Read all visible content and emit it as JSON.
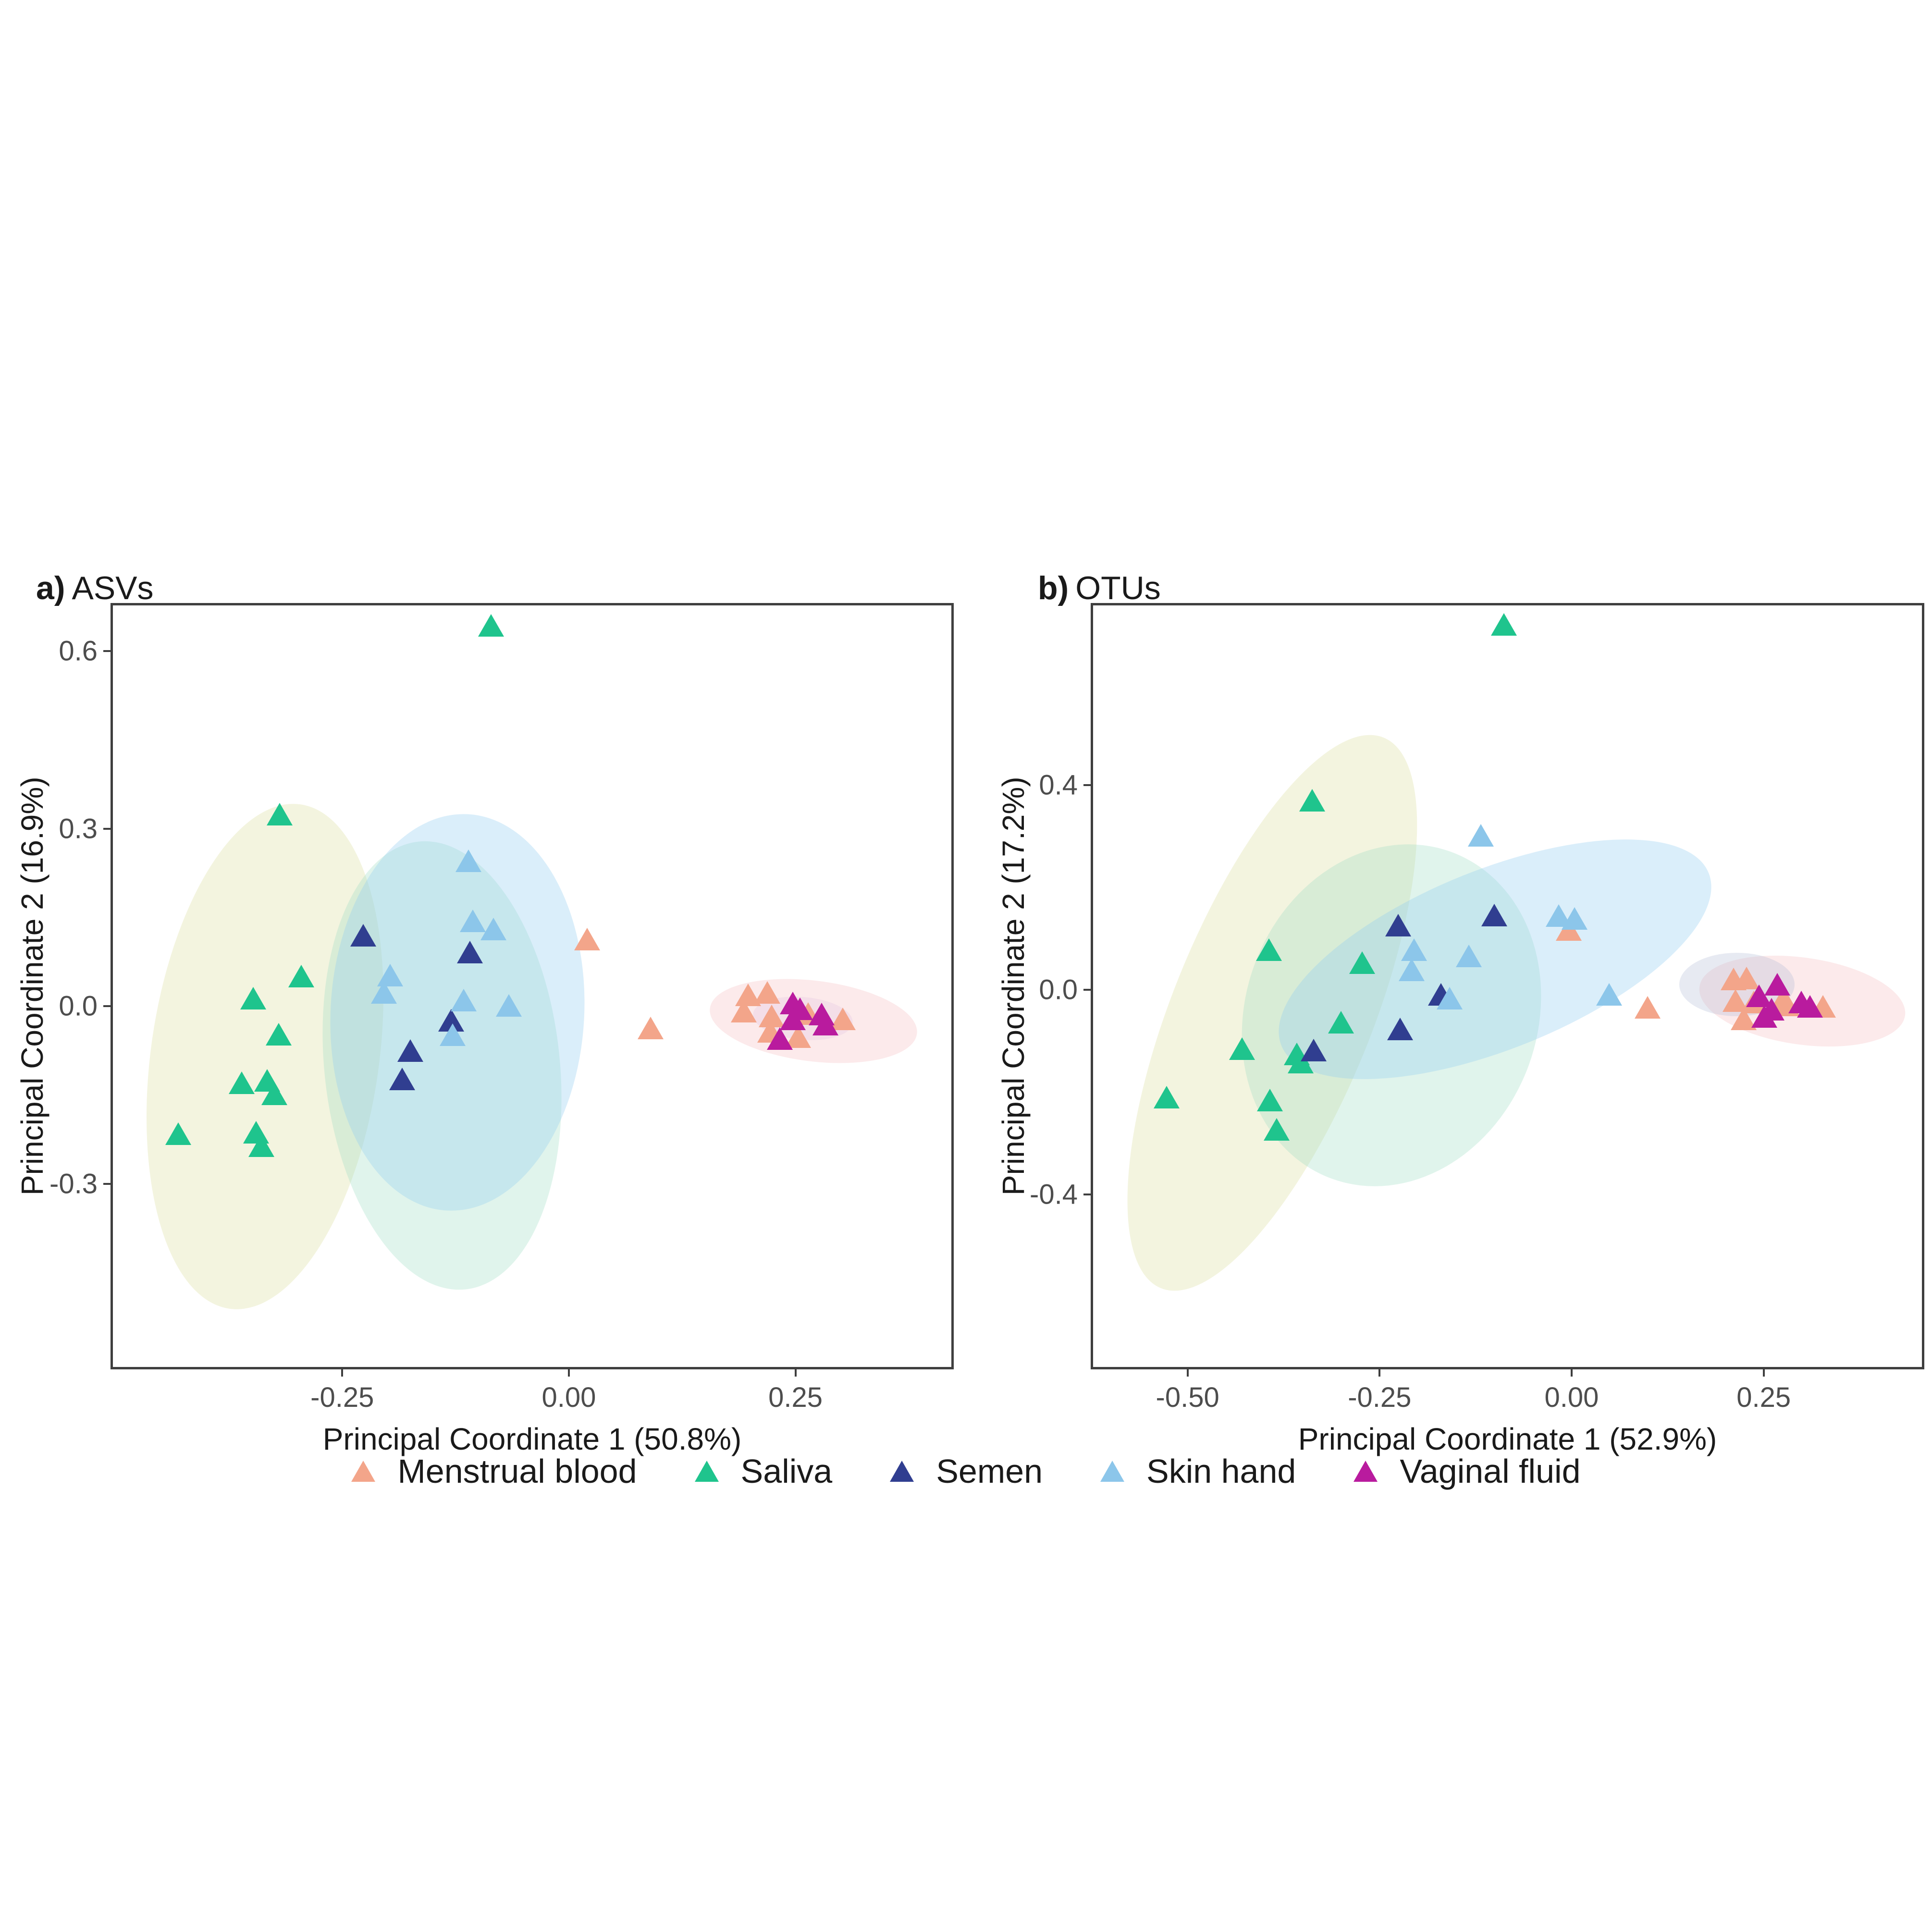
{
  "figure": {
    "background": "#ffffff",
    "border_color": "#3f3f3f",
    "tick_label_color": "#4d4d4d"
  },
  "colors": {
    "markers": {
      "menstrual_blood": "#F3A58A",
      "saliva": "#1FC48D",
      "semen": "#303E90",
      "skin_hand": "#8CC6EA",
      "vaginal_fluid": "#B91B9E"
    }
  },
  "chart_data": [
    {
      "type": "scatter",
      "panel_label": "a)",
      "title": "ASVs",
      "xlabel": "Principal Coordinate 1 (50.8%)",
      "ylabel": "Principal Coordinate 2 (16.9%)",
      "xlim": [
        -0.503,
        0.422
      ],
      "ylim": [
        -0.609,
        0.677
      ],
      "xticks": [
        -0.25,
        0.0,
        0.25
      ],
      "xtick_labels": [
        "-0.25",
        "0.00",
        "0.25"
      ],
      "yticks": [
        0.6,
        0.3,
        0.0,
        -0.3
      ],
      "ytick_labels": [
        "0.6",
        "0.3",
        "0.0",
        "-0.3"
      ],
      "grid": false,
      "legend_position": "bottom-shared",
      "ellipses": [
        {
          "series": "saliva",
          "cx": -0.335,
          "cy": -0.085,
          "rx": 0.126,
          "ry": 0.43,
          "rot": 8,
          "fill": "rgba(225,227,175,0.40)"
        },
        {
          "series": "semen",
          "cx": -0.14,
          "cy": -0.1,
          "rx": 0.13,
          "ry": 0.38,
          "rot": -6,
          "fill": "rgba(160,220,196,0.32)"
        },
        {
          "series": "skin_hand",
          "cx": -0.123,
          "cy": -0.01,
          "rx": 0.14,
          "ry": 0.335,
          "rot": 3,
          "fill": "rgba(150,206,240,0.35)"
        },
        {
          "series": "menstrual_blood",
          "cx": 0.27,
          "cy": -0.025,
          "rx": 0.115,
          "ry": 0.068,
          "rot": 7,
          "fill": "rgba(246,190,193,0.32)"
        },
        {
          "series": "vaginal_fluid",
          "cx": 0.258,
          "cy": -0.02,
          "rx": 0.055,
          "ry": 0.036,
          "rot": 5,
          "fill": "rgba(228,200,225,0.35)"
        }
      ],
      "series": [
        {
          "name": "Menstrual blood",
          "key": "menstrual_blood",
          "points": [
            [
              0.02,
              0.11
            ],
            [
              0.09,
              -0.04
            ],
            [
              0.198,
              0.016
            ],
            [
              0.219,
              0.02
            ],
            [
              0.193,
              -0.012
            ],
            [
              0.224,
              -0.02
            ],
            [
              0.264,
              -0.016
            ],
            [
              0.302,
              -0.025
            ],
            [
              0.222,
              -0.046
            ],
            [
              0.253,
              -0.055
            ]
          ]
        },
        {
          "name": "Saliva",
          "key": "saliva",
          "points": [
            [
              -0.086,
              0.64
            ],
            [
              -0.319,
              0.321
            ],
            [
              -0.295,
              0.047
            ],
            [
              -0.348,
              0.01
            ],
            [
              -0.32,
              -0.051
            ],
            [
              -0.361,
              -0.133
            ],
            [
              -0.333,
              -0.129
            ],
            [
              -0.325,
              -0.151
            ],
            [
              -0.431,
              -0.219
            ],
            [
              -0.345,
              -0.216
            ],
            [
              -0.339,
              -0.239
            ]
          ]
        },
        {
          "name": "Semen",
          "key": "semen",
          "points": [
            [
              -0.227,
              0.116
            ],
            [
              -0.109,
              0.088
            ],
            [
              -0.13,
              -0.027
            ],
            [
              -0.175,
              -0.078
            ],
            [
              -0.184,
              -0.126
            ]
          ]
        },
        {
          "name": "Skin hand",
          "key": "skin_hand",
          "points": [
            [
              -0.111,
              0.242
            ],
            [
              -0.106,
              0.141
            ],
            [
              -0.083,
              0.127
            ],
            [
              -0.197,
              0.049
            ],
            [
              -0.204,
              0.02
            ],
            [
              -0.116,
              0.007
            ],
            [
              -0.066,
              -0.002
            ],
            [
              -0.128,
              -0.052
            ]
          ]
        },
        {
          "name": "Vaginal fluid",
          "key": "vaginal_fluid",
          "points": [
            [
              0.247,
              0.002
            ],
            [
              0.255,
              -0.008
            ],
            [
              0.247,
              -0.025
            ],
            [
              0.279,
              -0.017
            ],
            [
              0.283,
              -0.034
            ],
            [
              0.233,
              -0.058
            ]
          ]
        }
      ]
    },
    {
      "type": "scatter",
      "panel_label": "b)",
      "title": "OTUs",
      "xlabel": "Principal Coordinate 1 (52.9%)",
      "ylabel": "Principal Coordinate 2 (17.2%)",
      "xlim": [
        -0.623,
        0.456
      ],
      "ylim": [
        -0.737,
        0.751
      ],
      "xticks": [
        -0.5,
        -0.25,
        0.0,
        0.25
      ],
      "xtick_labels": [
        "-0.50",
        "-0.25",
        "0.00",
        "0.25"
      ],
      "yticks": [
        0.4,
        0.0,
        -0.4
      ],
      "ytick_labels": [
        "0.4",
        "0.0",
        "-0.4"
      ],
      "grid": false,
      "legend_position": "bottom-shared",
      "ellipses": [
        {
          "series": "saliva",
          "cx": -0.39,
          "cy": -0.045,
          "rx": 0.13,
          "ry": 0.58,
          "rot": 22,
          "fill": "rgba(225,227,175,0.40)"
        },
        {
          "series": "semen",
          "cx": -0.235,
          "cy": -0.05,
          "rx": 0.19,
          "ry": 0.34,
          "rot": 20,
          "fill": "rgba(160,220,196,0.32)"
        },
        {
          "series": "skin_hand",
          "cx": -0.1,
          "cy": 0.06,
          "rx": 0.3,
          "ry": 0.175,
          "rot": -22,
          "fill": "rgba(150,206,240,0.35)"
        },
        {
          "series": "menstrual_blood",
          "cx": 0.3,
          "cy": -0.022,
          "rx": 0.135,
          "ry": 0.085,
          "rot": 8,
          "fill": "rgba(246,190,193,0.32)"
        },
        {
          "series": "vaginal_fluid",
          "cx": 0.215,
          "cy": 0.01,
          "rx": 0.075,
          "ry": 0.062,
          "rot": 0,
          "fill": "rgba(176,186,212,0.30)"
        }
      ],
      "series": [
        {
          "name": "Menstrual blood",
          "key": "menstrual_blood",
          "points": [
            [
              -0.004,
              0.114
            ],
            [
              0.099,
              -0.039
            ],
            [
              0.211,
              0.017
            ],
            [
              0.228,
              0.019
            ],
            [
              0.213,
              -0.025
            ],
            [
              0.237,
              -0.028
            ],
            [
              0.276,
              -0.021
            ],
            [
              0.28,
              -0.034
            ],
            [
              0.327,
              -0.037
            ],
            [
              0.224,
              -0.061
            ]
          ]
        },
        {
          "name": "Saliva",
          "key": "saliva",
          "points": [
            [
              -0.088,
              0.71
            ],
            [
              -0.338,
              0.366
            ],
            [
              -0.394,
              0.074
            ],
            [
              -0.273,
              0.049
            ],
            [
              -0.3,
              -0.068
            ],
            [
              -0.429,
              -0.119
            ],
            [
              -0.358,
              -0.13
            ],
            [
              -0.353,
              -0.146
            ],
            [
              -0.527,
              -0.214
            ],
            [
              -0.393,
              -0.22
            ],
            [
              -0.384,
              -0.277
            ]
          ]
        },
        {
          "name": "Semen",
          "key": "semen",
          "points": [
            [
              -0.226,
              0.122
            ],
            [
              -0.101,
              0.142
            ],
            [
              -0.17,
              -0.013
            ],
            [
              -0.223,
              -0.081
            ],
            [
              -0.336,
              -0.122
            ]
          ]
        },
        {
          "name": "Skin hand",
          "key": "skin_hand",
          "points": [
            [
              -0.118,
              0.298
            ],
            [
              -0.205,
              0.074
            ],
            [
              -0.208,
              0.035
            ],
            [
              -0.134,
              0.062
            ],
            [
              -0.159,
              -0.021
            ],
            [
              -0.017,
              0.141
            ],
            [
              0.004,
              0.135
            ],
            [
              0.049,
              -0.013
            ]
          ]
        },
        {
          "name": "Vaginal fluid",
          "key": "vaginal_fluid",
          "points": [
            [
              0.268,
              0.007
            ],
            [
              0.244,
              -0.016
            ],
            [
              0.26,
              -0.042
            ],
            [
              0.299,
              -0.028
            ],
            [
              0.31,
              -0.037
            ],
            [
              0.251,
              -0.056
            ]
          ]
        }
      ]
    }
  ],
  "legend": {
    "items": [
      {
        "label": "Menstrual blood",
        "series": "menstrual_blood"
      },
      {
        "label": "Saliva",
        "series": "saliva"
      },
      {
        "label": "Semen",
        "series": "semen"
      },
      {
        "label": "Skin hand",
        "series": "skin_hand"
      },
      {
        "label": "Vaginal fluid",
        "series": "vaginal_fluid"
      }
    ]
  }
}
